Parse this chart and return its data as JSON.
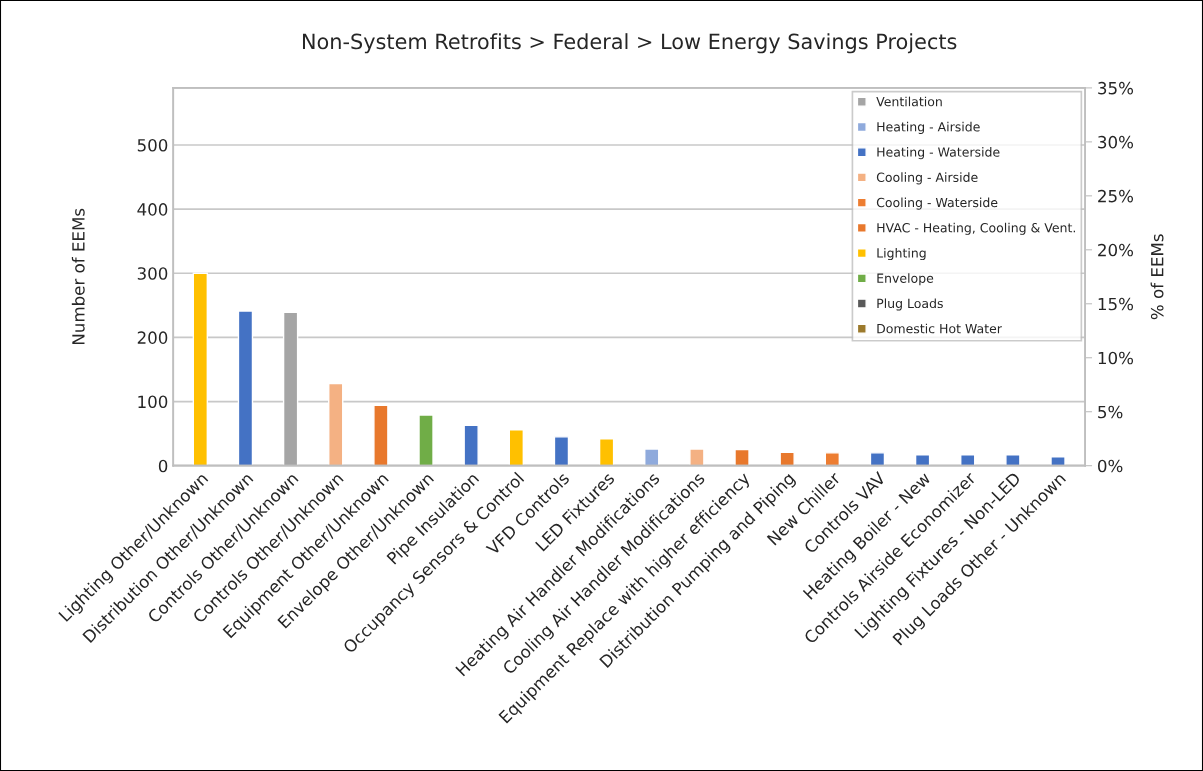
{
  "chart_data": {
    "type": "bar",
    "title": "Non-System Retrofits > Federal > Low Energy Savings Projects",
    "categories": [
      "Lighting Other/Unknown",
      "Distribution Other/Unknown",
      "Controls Other/Unknown",
      "Controls Other/Unknown",
      "Equipment Other/Unknown",
      "Envelope Other/Unknown",
      "Pipe Insulation",
      "Occupancy Sensors & Control",
      "VFD Controls",
      "LED Fixtures",
      "Heating Air Handler Modifications",
      "Cooling Air Handler Modifications",
      "Equipment Replace with higher efficiency",
      "Distribution Pumping and Piping",
      "New Chiller",
      "Controls VAV",
      "Heating Boiler - New",
      "Controls Airside Economizer",
      "Lighting Fixtures - Non-LED",
      "Plug Loads Other - Unknown"
    ],
    "series": [
      {
        "name": "Ventilation",
        "color": "#a5a5a5",
        "values": [
          null,
          null,
          239,
          null,
          null,
          null,
          null,
          null,
          null,
          null,
          null,
          null,
          null,
          null,
          null,
          null,
          null,
          null,
          null,
          null
        ]
      },
      {
        "name": "Heating - Airside",
        "color": "#8faadc",
        "values": [
          null,
          null,
          null,
          null,
          null,
          null,
          null,
          null,
          null,
          null,
          26,
          null,
          null,
          null,
          null,
          null,
          null,
          null,
          null,
          null
        ]
      },
      {
        "name": "Heating - Waterside",
        "color": "#4472c4",
        "values": [
          null,
          241,
          null,
          null,
          null,
          null,
          63,
          null,
          45,
          null,
          null,
          null,
          null,
          null,
          null,
          20,
          17,
          17,
          17,
          14
        ]
      },
      {
        "name": "Cooling - Airside",
        "color": "#f4b183",
        "values": [
          null,
          null,
          null,
          128,
          null,
          null,
          null,
          null,
          null,
          null,
          null,
          26,
          null,
          null,
          null,
          null,
          null,
          null,
          null,
          null
        ]
      },
      {
        "name": "Cooling - Waterside",
        "color": "#ed7d31",
        "values": [
          null,
          null,
          null,
          null,
          null,
          null,
          null,
          null,
          null,
          null,
          null,
          null,
          null,
          null,
          20,
          null,
          null,
          null,
          null,
          null
        ]
      },
      {
        "name": "HVAC - Heating, Cooling & Vent.",
        "color": "#e8782c",
        "values": [
          null,
          null,
          null,
          null,
          94,
          null,
          null,
          null,
          null,
          null,
          null,
          null,
          25,
          21,
          null,
          null,
          null,
          null,
          null,
          null
        ]
      },
      {
        "name": "Lighting",
        "color": "#ffc000",
        "values": [
          300,
          null,
          null,
          null,
          null,
          null,
          null,
          56,
          null,
          42,
          null,
          null,
          null,
          null,
          null,
          null,
          null,
          null,
          null,
          null
        ]
      },
      {
        "name": "Envelope",
        "color": "#70ad47",
        "values": [
          null,
          null,
          null,
          null,
          null,
          79,
          null,
          null,
          null,
          null,
          null,
          null,
          null,
          null,
          null,
          null,
          null,
          null,
          null,
          null
        ]
      },
      {
        "name": "Plug Loads",
        "color": "#595959",
        "values": [
          null,
          null,
          null,
          null,
          null,
          null,
          null,
          null,
          null,
          null,
          null,
          null,
          null,
          null,
          null,
          null,
          null,
          null,
          null,
          null
        ]
      },
      {
        "name": "Domestic Hot Water",
        "color": "#9c7a2c",
        "values": [
          null,
          null,
          null,
          null,
          null,
          null,
          null,
          null,
          null,
          null,
          null,
          null,
          null,
          null,
          null,
          null,
          null,
          null,
          null,
          null
        ]
      }
    ],
    "ylabel": "Number of EEMs",
    "y2label": "% of EEMs",
    "ylim": [
      0,
      589
    ],
    "yticks": [
      0,
      100,
      200,
      300,
      400,
      500
    ],
    "y2lim": [
      0,
      35
    ],
    "y2ticks": [
      {
        "value": 0,
        "label": "0%"
      },
      {
        "value": 5,
        "label": "5%"
      },
      {
        "value": 10,
        "label": "10%"
      },
      {
        "value": 15,
        "label": "15%"
      },
      {
        "value": 20,
        "label": "20%"
      },
      {
        "value": 25,
        "label": "25%"
      },
      {
        "value": 30,
        "label": "30%"
      },
      {
        "value": 35,
        "label": "35%"
      }
    ],
    "grid": "y",
    "legend": "top right"
  }
}
